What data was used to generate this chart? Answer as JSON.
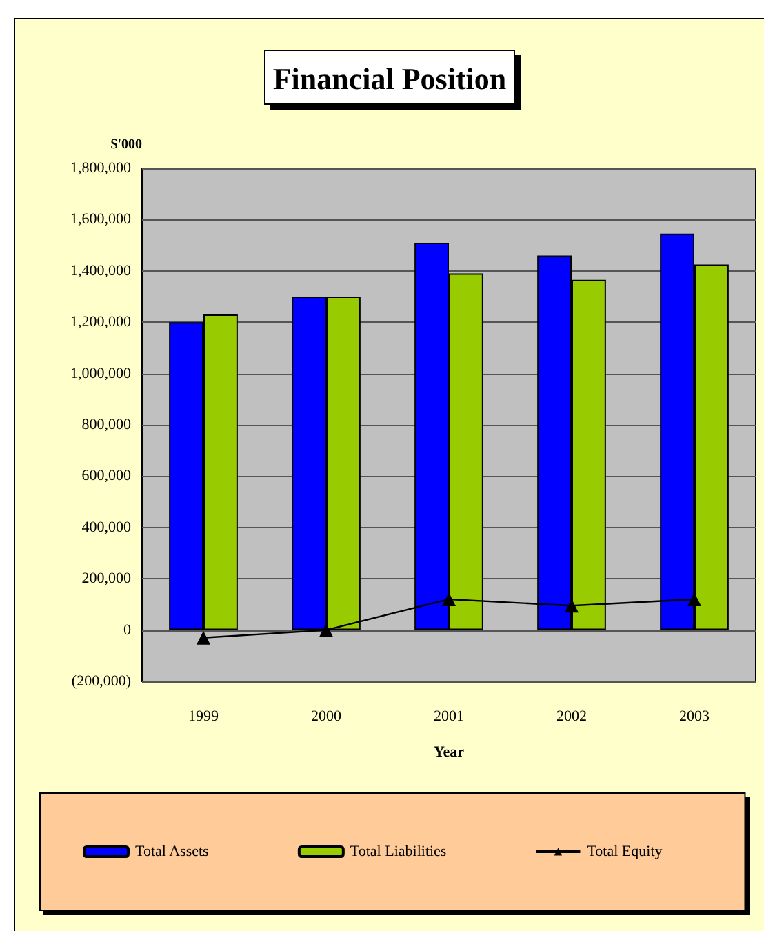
{
  "chart_data": {
    "type": "bar",
    "title": "Financial Position",
    "xlabel": "Year",
    "ylabel": "$'000",
    "categories": [
      "1999",
      "2000",
      "2001",
      "2002",
      "2003"
    ],
    "series": [
      {
        "name": "Total Assets",
        "color": "#0000ff",
        "values": [
          1200000,
          1300000,
          1510000,
          1460000,
          1545000
        ]
      },
      {
        "name": "Total Liabilities",
        "color": "#99cc00",
        "values": [
          1230000,
          1300000,
          1390000,
          1365000,
          1425000
        ]
      },
      {
        "name": "Total Equity",
        "type": "line",
        "color": "#000000",
        "marker": "triangle",
        "values": [
          -30000,
          0,
          120000,
          95000,
          120000
        ]
      }
    ],
    "ylim": [
      -200000,
      1800000
    ],
    "yticks": [
      {
        "value": -200000,
        "label": "(200,000)"
      },
      {
        "value": 0,
        "label": "0"
      },
      {
        "value": 200000,
        "label": "200,000"
      },
      {
        "value": 400000,
        "label": "400,000"
      },
      {
        "value": 600000,
        "label": "600,000"
      },
      {
        "value": 800000,
        "label": "800,000"
      },
      {
        "value": 1000000,
        "label": "1,000,000"
      },
      {
        "value": 1200000,
        "label": "1,200,000"
      },
      {
        "value": 1400000,
        "label": "1,400,000"
      },
      {
        "value": 1600000,
        "label": "1,600,000"
      },
      {
        "value": 1800000,
        "label": "1,800,000"
      }
    ],
    "grid": "y",
    "legend": "bottom"
  }
}
